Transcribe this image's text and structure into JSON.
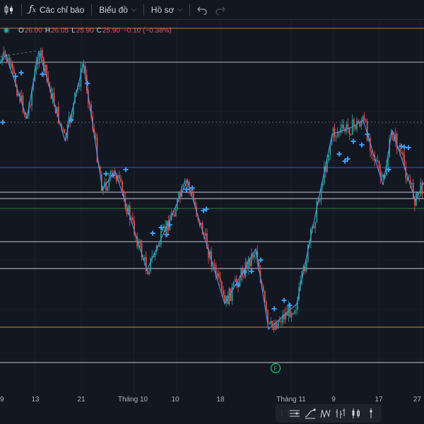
{
  "toolbar": {
    "indicators_label": "Các chỉ báo",
    "chart_label": "Biểu đồ",
    "profile_label": "Hồ sơ"
  },
  "legend": {
    "o_key": "O",
    "o_val": "26.00",
    "h_key": "H",
    "h_val": "26.05",
    "l_key": "L",
    "l_val": "25.90",
    "c_key": "C",
    "c_val": "25.90",
    "change": "−0.10 (−0.38%)"
  },
  "x_axis": {
    "ticks": [
      "9",
      "13",
      "21",
      "Tháng 10",
      "10",
      "18",
      "Tháng 11",
      "9",
      "17",
      "27"
    ]
  },
  "event_marker": "F",
  "colors": {
    "background": "#131722",
    "up": "#26a69a",
    "down": "#ef5350",
    "zigzag": "#4d8fd6",
    "signal": "#3c9df0"
  },
  "bottom_tools": [
    "grip-icon",
    "horizontal-lines-icon",
    "curve-tool-icon",
    "wave-icon",
    "bars-icon",
    "candles-icon",
    "single-line-icon"
  ]
}
